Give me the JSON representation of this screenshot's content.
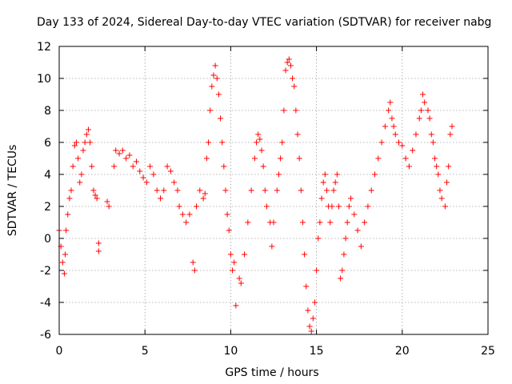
{
  "chart_data": {
    "type": "scatter",
    "title": "Day 133 of 2024, Sidereal Day-to-day VTEC variation (SDTVAR) for receiver nabg",
    "xlabel": "GPS time / hours",
    "ylabel": "SDTVAR / TECUs",
    "xlim": [
      0,
      25
    ],
    "ylim": [
      -6,
      12
    ],
    "xticks": [
      "0",
      "5",
      "10",
      "15",
      "20",
      "25"
    ],
    "yticks": [
      "-6",
      "-4",
      "-2",
      "0",
      "2",
      "4",
      "6",
      "8",
      "10",
      "12"
    ],
    "grid": true,
    "marker": "plus",
    "series": [
      {
        "name": "SDTVAR",
        "color": "#ff0000",
        "points": [
          [
            0.0,
            0.5
          ],
          [
            0.1,
            -0.5
          ],
          [
            0.2,
            -1.5
          ],
          [
            0.3,
            -2.2
          ],
          [
            0.35,
            -1.0
          ],
          [
            0.4,
            0.5
          ],
          [
            0.5,
            1.5
          ],
          [
            0.6,
            2.5
          ],
          [
            0.7,
            3.0
          ],
          [
            0.8,
            4.5
          ],
          [
            0.9,
            5.8
          ],
          [
            1.0,
            6.0
          ],
          [
            1.1,
            5.0
          ],
          [
            1.2,
            3.5
          ],
          [
            1.3,
            4.0
          ],
          [
            1.4,
            5.5
          ],
          [
            1.5,
            6.0
          ],
          [
            1.6,
            6.5
          ],
          [
            1.7,
            6.8
          ],
          [
            1.8,
            6.0
          ],
          [
            1.9,
            4.5
          ],
          [
            2.0,
            3.0
          ],
          [
            2.1,
            2.7
          ],
          [
            2.2,
            2.5
          ],
          [
            2.3,
            -0.3
          ],
          [
            2.3,
            -0.8
          ],
          [
            2.8,
            2.3
          ],
          [
            2.9,
            2.0
          ],
          [
            3.2,
            4.5
          ],
          [
            3.3,
            5.5
          ],
          [
            3.5,
            5.3
          ],
          [
            3.7,
            5.5
          ],
          [
            3.9,
            5.0
          ],
          [
            4.1,
            5.2
          ],
          [
            4.3,
            4.5
          ],
          [
            4.5,
            4.8
          ],
          [
            4.7,
            4.2
          ],
          [
            4.9,
            3.8
          ],
          [
            5.1,
            3.5
          ],
          [
            5.3,
            4.5
          ],
          [
            5.5,
            4.0
          ],
          [
            5.7,
            3.0
          ],
          [
            5.9,
            2.5
          ],
          [
            6.1,
            3.0
          ],
          [
            6.3,
            4.5
          ],
          [
            6.5,
            4.2
          ],
          [
            6.7,
            3.5
          ],
          [
            6.9,
            3.0
          ],
          [
            7.0,
            2.0
          ],
          [
            7.2,
            1.5
          ],
          [
            7.4,
            1.0
          ],
          [
            7.6,
            1.5
          ],
          [
            7.8,
            -1.5
          ],
          [
            7.9,
            -2.0
          ],
          [
            8.0,
            2.0
          ],
          [
            8.2,
            3.0
          ],
          [
            8.4,
            2.5
          ],
          [
            8.5,
            2.8
          ],
          [
            8.6,
            5.0
          ],
          [
            8.7,
            6.0
          ],
          [
            8.8,
            8.0
          ],
          [
            8.9,
            9.5
          ],
          [
            9.0,
            10.2
          ],
          [
            9.1,
            10.8
          ],
          [
            9.2,
            10.0
          ],
          [
            9.3,
            9.0
          ],
          [
            9.4,
            7.5
          ],
          [
            9.5,
            6.0
          ],
          [
            9.6,
            4.5
          ],
          [
            9.7,
            3.0
          ],
          [
            9.8,
            1.5
          ],
          [
            9.9,
            0.5
          ],
          [
            10.0,
            -1.0
          ],
          [
            10.1,
            -2.0
          ],
          [
            10.2,
            -1.5
          ],
          [
            10.3,
            -4.2
          ],
          [
            10.5,
            -2.5
          ],
          [
            10.6,
            -2.8
          ],
          [
            10.8,
            -1.0
          ],
          [
            11.0,
            1.0
          ],
          [
            11.2,
            3.0
          ],
          [
            11.4,
            5.0
          ],
          [
            11.5,
            6.0
          ],
          [
            11.6,
            6.5
          ],
          [
            11.7,
            6.2
          ],
          [
            11.8,
            5.5
          ],
          [
            11.9,
            4.5
          ],
          [
            12.0,
            3.0
          ],
          [
            12.1,
            2.0
          ],
          [
            12.3,
            1.0
          ],
          [
            12.4,
            -0.5
          ],
          [
            12.5,
            1.0
          ],
          [
            12.7,
            3.0
          ],
          [
            12.8,
            4.0
          ],
          [
            12.9,
            5.0
          ],
          [
            13.0,
            6.0
          ],
          [
            13.1,
            8.0
          ],
          [
            13.2,
            10.5
          ],
          [
            13.3,
            11.0
          ],
          [
            13.4,
            11.2
          ],
          [
            13.5,
            10.8
          ],
          [
            13.6,
            10.0
          ],
          [
            13.7,
            9.5
          ],
          [
            13.8,
            8.0
          ],
          [
            13.9,
            6.5
          ],
          [
            14.0,
            5.0
          ],
          [
            14.1,
            3.0
          ],
          [
            14.2,
            1.0
          ],
          [
            14.3,
            -1.0
          ],
          [
            14.4,
            -3.0
          ],
          [
            14.5,
            -4.5
          ],
          [
            14.6,
            -5.5
          ],
          [
            14.7,
            -5.8
          ],
          [
            14.8,
            -5.0
          ],
          [
            14.9,
            -4.0
          ],
          [
            15.0,
            -2.0
          ],
          [
            15.1,
            0.0
          ],
          [
            15.2,
            1.0
          ],
          [
            15.3,
            2.5
          ],
          [
            15.4,
            3.5
          ],
          [
            15.5,
            4.0
          ],
          [
            15.6,
            3.0
          ],
          [
            15.7,
            2.0
          ],
          [
            15.8,
            1.0
          ],
          [
            15.9,
            2.0
          ],
          [
            16.0,
            3.0
          ],
          [
            16.1,
            3.5
          ],
          [
            16.2,
            4.0
          ],
          [
            16.3,
            2.0
          ],
          [
            16.4,
            -2.5
          ],
          [
            16.5,
            -2.0
          ],
          [
            16.6,
            -1.0
          ],
          [
            16.7,
            0.0
          ],
          [
            16.8,
            1.0
          ],
          [
            16.9,
            2.0
          ],
          [
            17.0,
            2.5
          ],
          [
            17.2,
            1.5
          ],
          [
            17.4,
            0.5
          ],
          [
            17.6,
            -0.5
          ],
          [
            17.8,
            1.0
          ],
          [
            18.0,
            2.0
          ],
          [
            18.2,
            3.0
          ],
          [
            18.4,
            4.0
          ],
          [
            18.6,
            5.0
          ],
          [
            18.8,
            6.0
          ],
          [
            19.0,
            7.0
          ],
          [
            19.2,
            8.0
          ],
          [
            19.3,
            8.5
          ],
          [
            19.4,
            7.5
          ],
          [
            19.5,
            7.0
          ],
          [
            19.6,
            6.5
          ],
          [
            19.8,
            6.0
          ],
          [
            20.0,
            5.8
          ],
          [
            20.2,
            5.0
          ],
          [
            20.4,
            4.5
          ],
          [
            20.6,
            5.5
          ],
          [
            20.8,
            6.5
          ],
          [
            21.0,
            7.5
          ],
          [
            21.1,
            8.0
          ],
          [
            21.2,
            9.0
          ],
          [
            21.3,
            8.5
          ],
          [
            21.5,
            8.0
          ],
          [
            21.6,
            7.5
          ],
          [
            21.7,
            6.5
          ],
          [
            21.8,
            6.0
          ],
          [
            21.9,
            5.0
          ],
          [
            22.0,
            4.5
          ],
          [
            22.1,
            4.0
          ],
          [
            22.2,
            3.0
          ],
          [
            22.3,
            2.5
          ],
          [
            22.5,
            2.0
          ],
          [
            22.6,
            3.5
          ],
          [
            22.7,
            4.5
          ],
          [
            22.8,
            6.5
          ],
          [
            22.9,
            7.0
          ]
        ]
      }
    ]
  }
}
